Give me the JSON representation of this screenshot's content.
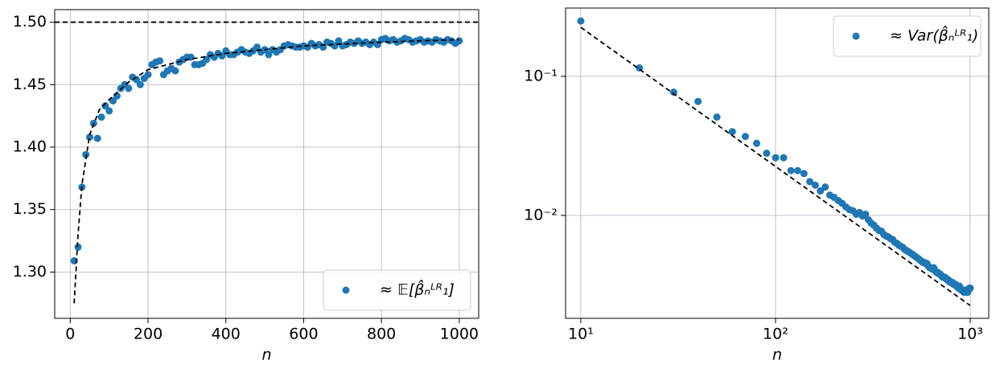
{
  "chart_data": [
    {
      "type": "scatter",
      "xlabel": "n",
      "xscale": "linear",
      "yscale": "linear",
      "grid": true,
      "legend": "lower right",
      "xlim": [
        -40,
        1050
      ],
      "ylim": [
        1.263,
        1.51
      ],
      "xticks": [
        0,
        200,
        400,
        600,
        800,
        1000
      ],
      "yticks": [
        {
          "value": 1.3,
          "label": "1.30"
        },
        1.35,
        {
          "value": 1.4,
          "label": "1.40"
        },
        1.45,
        {
          "value": 1.5,
          "label": "1.50"
        }
      ],
      "x": [
        10,
        20,
        30,
        40,
        50,
        60,
        70,
        80,
        90,
        100,
        110,
        120,
        130,
        140,
        150,
        160,
        170,
        180,
        190,
        200,
        210,
        220,
        230,
        240,
        250,
        260,
        270,
        280,
        290,
        300,
        310,
        320,
        330,
        340,
        350,
        360,
        370,
        380,
        390,
        400,
        410,
        420,
        430,
        440,
        450,
        460,
        470,
        480,
        490,
        500,
        510,
        520,
        530,
        540,
        550,
        560,
        570,
        580,
        590,
        600,
        610,
        620,
        630,
        640,
        650,
        660,
        670,
        680,
        690,
        700,
        710,
        720,
        730,
        740,
        750,
        760,
        770,
        780,
        790,
        800,
        810,
        820,
        830,
        840,
        850,
        860,
        870,
        880,
        890,
        900,
        910,
        920,
        930,
        940,
        950,
        960,
        970,
        980,
        990,
        1000
      ],
      "series": [
        {
          "name": "≈ 𝔼[β̂ₙᴸᴿ₁]",
          "color": "#1f77b4",
          "values": [
            1.309,
            1.32,
            1.368,
            1.394,
            1.408,
            1.419,
            1.407,
            1.424,
            1.433,
            1.429,
            1.437,
            1.441,
            1.447,
            1.45,
            1.447,
            1.456,
            1.454,
            1.45,
            1.455,
            1.458,
            1.466,
            1.468,
            1.469,
            1.458,
            1.461,
            1.463,
            1.461,
            1.468,
            1.47,
            1.472,
            1.472,
            1.466,
            1.466,
            1.467,
            1.47,
            1.474,
            1.472,
            1.475,
            1.473,
            1.477,
            1.474,
            1.474,
            1.476,
            1.478,
            1.476,
            1.475,
            1.477,
            1.48,
            1.476,
            1.478,
            1.474,
            1.478,
            1.476,
            1.478,
            1.481,
            1.482,
            1.481,
            1.48,
            1.48,
            1.481,
            1.48,
            1.483,
            1.481,
            1.482,
            1.48,
            1.484,
            1.483,
            1.481,
            1.485,
            1.481,
            1.482,
            1.484,
            1.483,
            1.485,
            1.483,
            1.484,
            1.482,
            1.484,
            1.482,
            1.486,
            1.487,
            1.485,
            1.486,
            1.484,
            1.485,
            1.487,
            1.486,
            1.484,
            1.485,
            1.486,
            1.484,
            1.485,
            1.484,
            1.486,
            1.485,
            1.484,
            1.486,
            1.485,
            1.483,
            1.485
          ]
        }
      ],
      "lines": [
        {
          "color": "#000000",
          "dashed": true,
          "x": [
            10,
            20,
            30,
            50,
            75,
            100,
            150,
            200,
            300,
            400,
            500,
            600,
            800,
            1000
          ],
          "values": [
            1.275,
            1.33,
            1.37,
            1.41,
            1.43,
            1.438,
            1.452,
            1.462,
            1.47,
            1.475,
            1.478,
            1.481,
            1.484,
            1.486
          ]
        }
      ],
      "hlines": [
        {
          "value": 1.5,
          "color": "#000000",
          "dashed": true
        }
      ]
    },
    {
      "type": "scatter",
      "xlabel": "n",
      "xscale": "log",
      "yscale": "log",
      "grid": true,
      "legend": "upper right",
      "xlim": [
        8.35,
        1245
      ],
      "ylim": [
        0.00182,
        0.31
      ],
      "xticks": [
        {
          "value": 10,
          "label": "10¹"
        },
        {
          "value": 100,
          "label": "10²"
        },
        {
          "value": 1000,
          "label": "10³"
        }
      ],
      "yticks": [
        {
          "value": 0.01,
          "label": "10⁻²"
        },
        {
          "value": 0.1,
          "label": "10⁻¹"
        }
      ],
      "x": [
        10,
        20,
        30,
        40,
        50,
        60,
        70,
        80,
        90,
        100,
        110,
        120,
        130,
        140,
        150,
        160,
        170,
        180,
        190,
        200,
        210,
        220,
        230,
        240,
        250,
        260,
        270,
        280,
        290,
        300,
        310,
        320,
        330,
        340,
        350,
        360,
        370,
        380,
        390,
        400,
        410,
        420,
        430,
        440,
        450,
        460,
        470,
        480,
        490,
        500,
        510,
        520,
        530,
        540,
        550,
        560,
        570,
        580,
        590,
        600,
        610,
        620,
        630,
        640,
        650,
        660,
        670,
        680,
        690,
        700,
        710,
        720,
        730,
        740,
        750,
        760,
        770,
        780,
        790,
        800,
        810,
        820,
        830,
        840,
        850,
        860,
        870,
        880,
        890,
        900,
        910,
        920,
        930,
        940,
        950,
        960,
        970,
        980,
        990,
        1000
      ],
      "series": [
        {
          "name": "≈ Var(β̂ₙᴸᴿ₁)",
          "color": "#1f77b4",
          "values": [
            0.25,
            0.115,
            0.077,
            0.066,
            0.051,
            0.04,
            0.037,
            0.033,
            0.028,
            0.026,
            0.026,
            0.021,
            0.021,
            0.02,
            0.0175,
            0.0165,
            0.015,
            0.016,
            0.014,
            0.0135,
            0.0128,
            0.0122,
            0.0115,
            0.011,
            0.0108,
            0.0102,
            0.0105,
            0.0099,
            0.0102,
            0.0093,
            0.0088,
            0.0085,
            0.0081,
            0.0078,
            0.0077,
            0.0073,
            0.0071,
            0.007,
            0.0068,
            0.0067,
            0.0064,
            0.0063,
            0.0061,
            0.006,
            0.0059,
            0.0057,
            0.0056,
            0.0055,
            0.0054,
            0.0053,
            0.0052,
            0.0051,
            0.005,
            0.0049,
            0.0048,
            0.0047,
            0.0046,
            0.0046,
            0.0045,
            0.0045,
            0.0043,
            0.0042,
            0.0042,
            0.0041,
            0.0042,
            0.004,
            0.0039,
            0.0039,
            0.0038,
            0.0038,
            0.0037,
            0.0036,
            0.0036,
            0.0036,
            0.0035,
            0.0035,
            0.0034,
            0.0034,
            0.0033,
            0.0033,
            0.0033,
            0.0032,
            0.0032,
            0.0032,
            0.0031,
            0.0031,
            0.003,
            0.0031,
            0.003,
            0.0029,
            0.0029,
            0.0029,
            0.0028,
            0.0029,
            0.0029,
            0.0028,
            0.0028,
            0.0029,
            0.003,
            0.003
          ]
        }
      ],
      "lines": [
        {
          "color": "#000000",
          "dashed": true,
          "x": [
            10,
            1000
          ],
          "values": [
            0.225,
            0.00225
          ]
        }
      ],
      "hlines": []
    }
  ]
}
